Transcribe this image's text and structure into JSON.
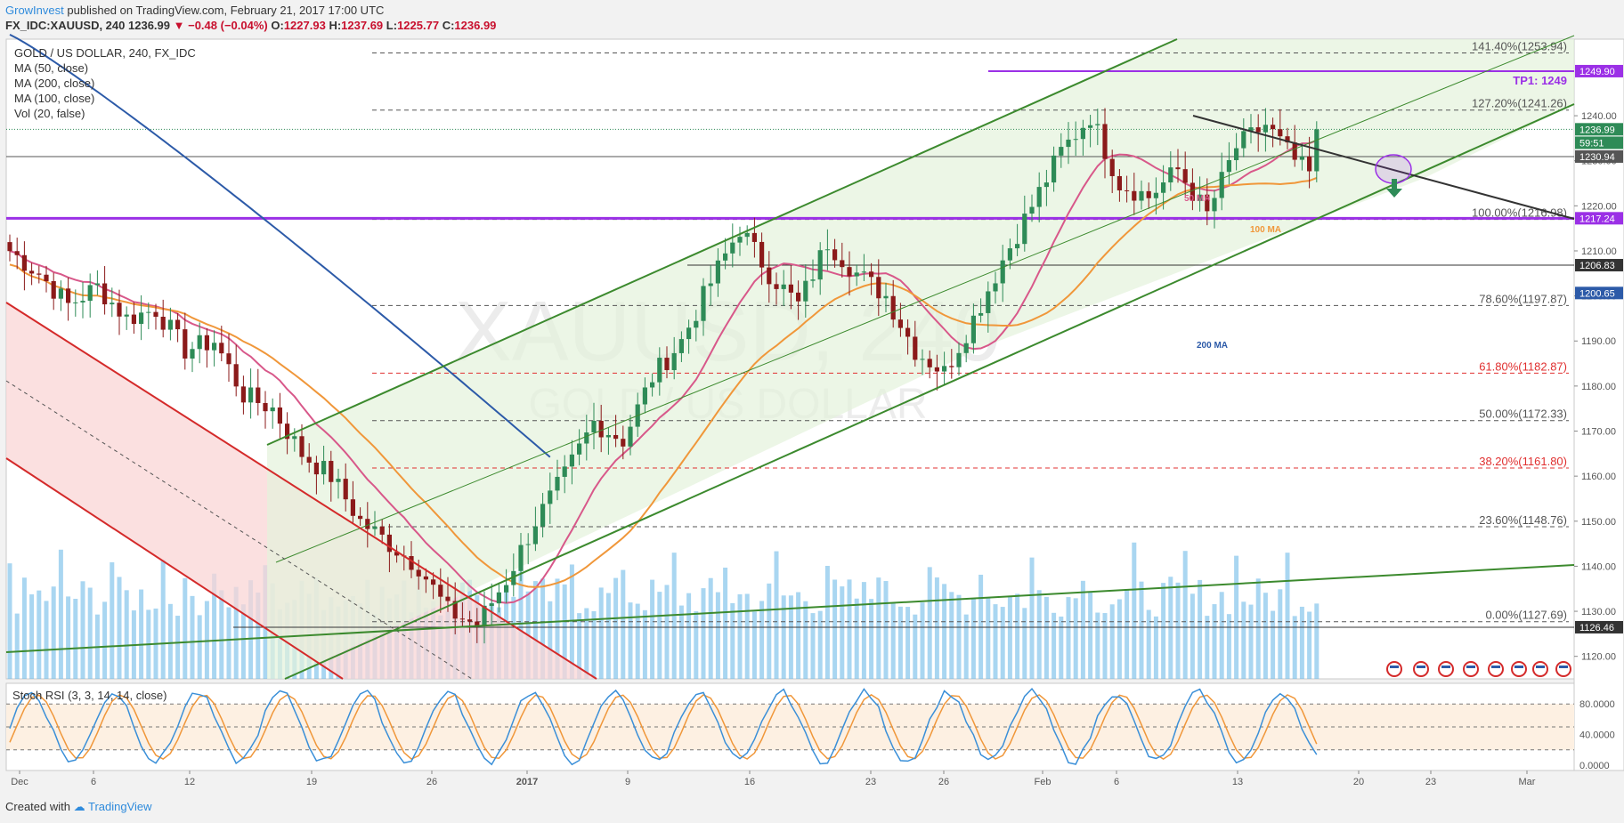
{
  "header": {
    "author": "GrowInvest",
    "published": "published on TradingView.com, February 21, 2017 17:00 UTC"
  },
  "ohlc": {
    "symbol": "FX_IDC:XAUUSD, 240",
    "last": "1236.99",
    "change": "▼ −0.48 (−0.04%)",
    "o_label": "O:",
    "o": "1227.93",
    "h_label": "H:",
    "h": "1237.69",
    "l_label": "L:",
    "l": "1225.77",
    "c_label": "C:",
    "c": "1236.99"
  },
  "legend": {
    "instrument": "GOLD / US DOLLAR, 240, FX_IDC",
    "ma50": "MA (50, close)",
    "ma200": "MA (200, close)",
    "ma100": "MA (100, close)",
    "vol": "Vol (20, false)",
    "stoch": "Stoch RSI (3, 3, 14, 14, close)"
  },
  "watermark": {
    "main": "XAUUSD, 240",
    "sub": "GOLD / US DOLLAR"
  },
  "footer": {
    "created": "Created with",
    "brand": "TradingView"
  },
  "annotations": {
    "tp1": "TP1: 1249",
    "ma50": "50 MA",
    "ma100": "100 MA",
    "ma200": "200 MA"
  },
  "colors": {
    "up": "#2e8b57",
    "down": "#8b1a1a",
    "ma50": "#d8588a",
    "ma100": "#f0973a",
    "ma200": "#2c5aa8",
    "channel": "#3c8a2e",
    "bear_channel": "#d42a2a",
    "hline": "#9b30e6",
    "volume": "#62b4e6",
    "stoch_k": "#3a8fd8",
    "stoch_d": "#f0973a"
  },
  "chart_data": {
    "type": "candlestick",
    "symbol": "XAUUSD",
    "interval": "240",
    "price_axis": {
      "min": 1115,
      "max": 1257,
      "ticks": [
        1120,
        1130,
        1140,
        1150,
        1160,
        1170,
        1180,
        1190,
        1200,
        1210,
        1220,
        1230,
        1240
      ],
      "labels": [
        "1120.00",
        "1130.00",
        "1140.00",
        "1150.00",
        "1160.00",
        "1170.00",
        "1180.00",
        "1190.00",
        "1200.00",
        "1210.00",
        "1220.00",
        "1230.00",
        "1240.00"
      ]
    },
    "time_axis": {
      "labels": [
        "Dec",
        "6",
        "12",
        "19",
        "26",
        "2017",
        "9",
        "16",
        "23",
        "26",
        "Feb",
        "6",
        "13",
        "20",
        "23",
        "Mar"
      ]
    },
    "price_tags": [
      {
        "value": 1249.9,
        "text": "1249.90",
        "color": "#9b30e6"
      },
      {
        "value": 1236.99,
        "text": "1236.99",
        "color": "#2e8b57"
      },
      {
        "value": 1234.0,
        "text": "59:51",
        "color": "#2e8b57"
      },
      {
        "value": 1230.94,
        "text": "1230.94",
        "color": "#555555"
      },
      {
        "value": 1217.24,
        "text": "1217.24",
        "color": "#9b30e6"
      },
      {
        "value": 1206.83,
        "text": "1206.83",
        "color": "#333333"
      },
      {
        "value": 1200.65,
        "text": "1200.65",
        "color": "#2c5aa8"
      },
      {
        "value": 1126.46,
        "text": "1126.46",
        "color": "#333333"
      }
    ],
    "fib_levels": [
      {
        "label": "141.40%(1253.94)",
        "value": 1253.94,
        "color": "#555555"
      },
      {
        "label": "127.20%(1241.26)",
        "value": 1241.26,
        "color": "#555555"
      },
      {
        "label": "100.00%(1216.98)",
        "value": 1216.98,
        "color": "#555555"
      },
      {
        "label": "78.60%(1197.87)",
        "value": 1197.87,
        "color": "#555555"
      },
      {
        "label": "61.80%(1182.87)",
        "value": 1182.87,
        "color": "#e03030"
      },
      {
        "label": "50.00%(1172.33)",
        "value": 1172.33,
        "color": "#555555"
      },
      {
        "label": "38.20%(1161.80)",
        "value": 1161.8,
        "color": "#e03030"
      },
      {
        "label": "23.60%(1148.76)",
        "value": 1148.76,
        "color": "#555555"
      },
      {
        "label": "0.00%(1127.69)",
        "value": 1127.69,
        "color": "#555555"
      }
    ],
    "horizontal_levels": [
      1249.9,
      1217.24,
      1230.94,
      1206.83,
      1126.46
    ],
    "close_path": [
      [
        0,
        1210
      ],
      [
        4,
        1205
      ],
      [
        8,
        1198
      ],
      [
        12,
        1202
      ],
      [
        16,
        1195
      ],
      [
        20,
        1197
      ],
      [
        24,
        1188
      ],
      [
        28,
        1190
      ],
      [
        32,
        1178
      ],
      [
        36,
        1175
      ],
      [
        40,
        1165
      ],
      [
        44,
        1160
      ],
      [
        48,
        1150
      ],
      [
        52,
        1145
      ],
      [
        56,
        1140
      ],
      [
        60,
        1130
      ],
      [
        64,
        1127
      ],
      [
        68,
        1137
      ],
      [
        72,
        1150
      ],
      [
        76,
        1160
      ],
      [
        80,
        1172
      ],
      [
        84,
        1168
      ],
      [
        88,
        1182
      ],
      [
        92,
        1190
      ],
      [
        96,
        1203
      ],
      [
        100,
        1215
      ],
      [
        104,
        1205
      ],
      [
        108,
        1198
      ],
      [
        112,
        1212
      ],
      [
        116,
        1205
      ],
      [
        120,
        1200
      ],
      [
        124,
        1188
      ],
      [
        128,
        1183
      ],
      [
        132,
        1195
      ],
      [
        136,
        1208
      ],
      [
        140,
        1220
      ],
      [
        144,
        1232
      ],
      [
        148,
        1240
      ],
      [
        152,
        1225
      ],
      [
        156,
        1222
      ],
      [
        160,
        1228
      ],
      [
        164,
        1218
      ],
      [
        168,
        1233
      ],
      [
        172,
        1238
      ],
      [
        176,
        1230
      ],
      [
        178,
        1227
      ],
      [
        180,
        1237
      ]
    ],
    "stoch_axis": {
      "ticks": [
        0,
        40,
        80
      ],
      "labels": [
        "0.0000",
        "40.0000",
        "80.0000"
      ]
    }
  }
}
